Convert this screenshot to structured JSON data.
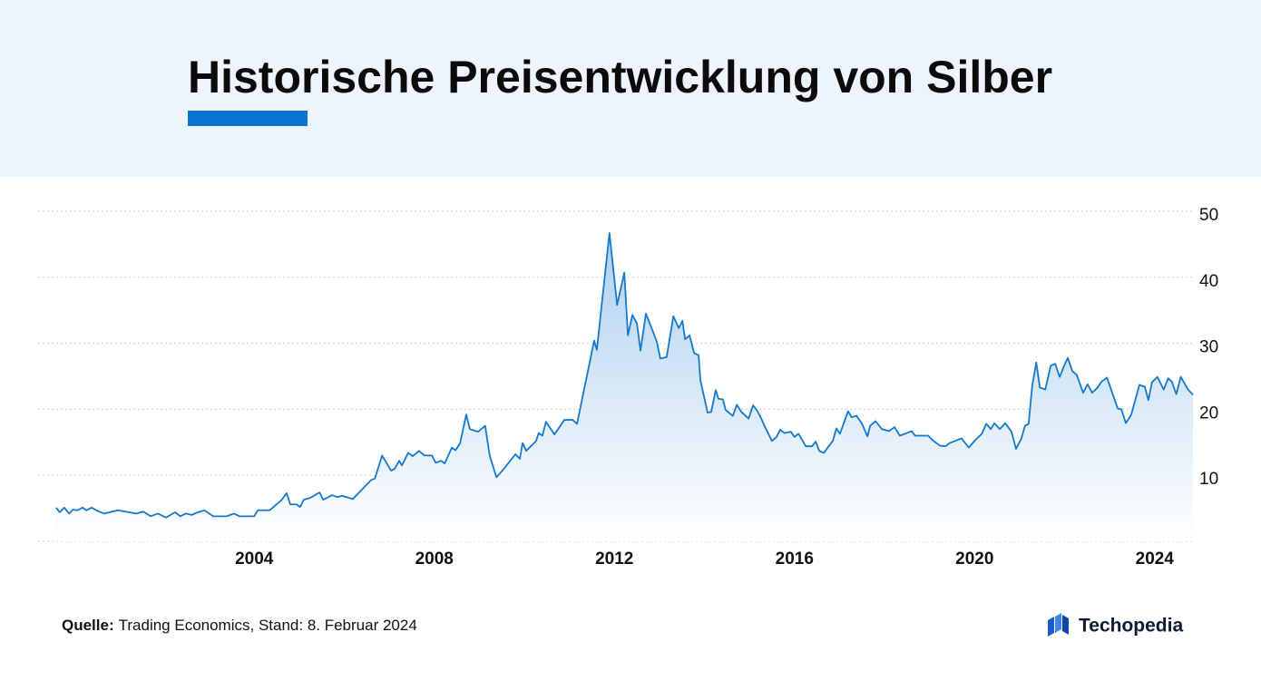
{
  "chart_data": {
    "type": "line",
    "title": "Historische Preisentwicklung von Silber",
    "source_label": "Quelle:",
    "source": "Trading Economics, Stand: 8. Februar 2024",
    "color": "#1479cc",
    "grid": true,
    "xlim": [
      1999.2,
      2024.85
    ],
    "xticks": [
      2004,
      2008,
      2012,
      2016,
      2020,
      2024
    ],
    "ylim": [
      0,
      50
    ],
    "yticks": [
      10,
      20,
      30,
      40,
      50
    ],
    "x": [
      1999.6,
      1999.68,
      1999.78,
      1999.89,
      1999.97,
      2000.07,
      2000.19,
      2000.27,
      2000.39,
      2000.49,
      2000.67,
      2000.97,
      2001.38,
      2001.54,
      2001.7,
      2001.86,
      2002.04,
      2002.24,
      2002.36,
      2002.48,
      2002.61,
      2002.75,
      2002.89,
      2003.09,
      2003.39,
      2003.55,
      2003.67,
      2004.0,
      2004.08,
      2004.34,
      2004.6,
      2004.72,
      2004.8,
      2004.94,
      2005.02,
      2005.1,
      2005.25,
      2005.45,
      2005.53,
      2005.73,
      2005.85,
      2005.95,
      2006.19,
      2006.47,
      2006.6,
      2006.68,
      2006.84,
      2007.04,
      2007.12,
      2007.22,
      2007.28,
      2007.42,
      2007.52,
      2007.66,
      2007.78,
      2007.95,
      2008.03,
      2008.15,
      2008.23,
      2008.39,
      2008.47,
      2008.57,
      2008.71,
      2008.79,
      2008.97,
      2009.13,
      2009.23,
      2009.38,
      2009.56,
      2009.8,
      2009.9,
      2009.96,
      2010.04,
      2010.26,
      2010.32,
      2010.4,
      2010.48,
      2010.54,
      2010.67,
      2010.89,
      2011.07,
      2011.17,
      2011.55,
      2011.61,
      2011.89,
      2012.06,
      2012.22,
      2012.3,
      2012.4,
      2012.5,
      2012.58,
      2012.7,
      2012.94,
      2013.02,
      2013.16,
      2013.31,
      2013.37,
      2013.43,
      2013.51,
      2013.57,
      2013.67,
      2013.77,
      2013.87,
      2013.91,
      2014.07,
      2014.15,
      2014.25,
      2014.31,
      2014.41,
      2014.47,
      2014.63,
      2014.72,
      2014.82,
      2014.98,
      2015.08,
      2015.16,
      2015.24,
      2015.34,
      2015.5,
      2015.6,
      2015.68,
      2015.78,
      2015.92,
      2016.0,
      2016.09,
      2016.25,
      2016.39,
      2016.47,
      2016.55,
      2016.65,
      2016.85,
      2016.93,
      2017.01,
      2017.19,
      2017.27,
      2017.38,
      2017.5,
      2017.62,
      2017.68,
      2017.8,
      2017.94,
      2018.1,
      2018.22,
      2018.34,
      2018.42,
      2018.6,
      2018.68,
      2018.97,
      2019.07,
      2019.23,
      2019.35,
      2019.45,
      2019.71,
      2019.87,
      2020.01,
      2020.16,
      2020.26,
      2020.36,
      2020.44,
      2020.56,
      2020.68,
      2020.82,
      2020.92,
      2021.04,
      2021.12,
      2021.2,
      2021.28,
      2021.37,
      2021.45,
      2021.57,
      2021.69,
      2021.79,
      2021.89,
      2021.99,
      2022.07,
      2022.17,
      2022.27,
      2022.41,
      2022.51,
      2022.61,
      2022.72,
      2022.82,
      2022.94,
      2023.18,
      2023.26,
      2023.36,
      2023.48,
      2023.66,
      2023.78,
      2023.86,
      2023.94,
      2024.06,
      2024.2,
      2024.3,
      2024.38,
      2024.48,
      2024.58,
      2024.74,
      2024.85
    ],
    "values": [
      5.1,
      4.4,
      5.1,
      4.2,
      4.8,
      4.7,
      5.1,
      4.7,
      5.1,
      4.7,
      4.2,
      4.7,
      4.2,
      4.5,
      3.8,
      4.2,
      3.6,
      4.4,
      3.8,
      4.2,
      4.0,
      4.4,
      4.7,
      3.8,
      3.8,
      4.2,
      3.8,
      3.8,
      4.7,
      4.7,
      6.2,
      7.3,
      5.6,
      5.6,
      5.2,
      6.3,
      6.6,
      7.4,
      6.3,
      7.0,
      6.7,
      6.9,
      6.4,
      8.4,
      9.3,
      9.5,
      13.0,
      10.7,
      11.0,
      12.2,
      11.5,
      13.4,
      12.9,
      13.7,
      13.0,
      13.0,
      11.9,
      12.2,
      11.8,
      14.2,
      13.8,
      14.8,
      19.2,
      17.0,
      16.6,
      17.5,
      13.0,
      9.7,
      11.1,
      13.2,
      12.5,
      14.9,
      13.7,
      15.2,
      16.4,
      16.0,
      18.1,
      17.5,
      16.2,
      18.4,
      18.4,
      17.8,
      30.4,
      29.0,
      46.7,
      35.8,
      40.7,
      31.2,
      34.3,
      33.0,
      28.9,
      34.5,
      30.3,
      27.7,
      27.9,
      34.1,
      33.2,
      32.3,
      33.4,
      30.6,
      31.2,
      28.5,
      28.2,
      24.4,
      19.5,
      19.6,
      22.9,
      21.6,
      21.5,
      19.9,
      19.0,
      20.7,
      19.6,
      18.6,
      20.6,
      19.9,
      18.9,
      17.4,
      15.2,
      15.8,
      16.9,
      16.4,
      16.6,
      15.8,
      16.3,
      14.4,
      14.4,
      15.1,
      13.7,
      13.4,
      15.2,
      17.1,
      16.3,
      19.7,
      18.8,
      19.0,
      17.8,
      15.9,
      17.5,
      18.2,
      17.0,
      16.7,
      17.3,
      16.0,
      16.2,
      16.7,
      16.0,
      16.0,
      15.3,
      14.5,
      14.4,
      14.9,
      15.6,
      14.2,
      15.3,
      16.3,
      17.8,
      17.0,
      17.9,
      17.0,
      17.9,
      16.6,
      14.0,
      15.6,
      17.5,
      17.8,
      23.6,
      27.1,
      23.3,
      23.0,
      26.6,
      26.9,
      24.9,
      26.6,
      27.8,
      25.8,
      25.2,
      22.5,
      23.8,
      22.5,
      23.2,
      24.2,
      24.8,
      20.1,
      20.0,
      17.9,
      19.2,
      23.7,
      23.4,
      21.4,
      24.1,
      24.9,
      23.0,
      24.7,
      24.2,
      22.3,
      24.9,
      23.0,
      22.2
    ]
  },
  "brand": "Techopedia"
}
